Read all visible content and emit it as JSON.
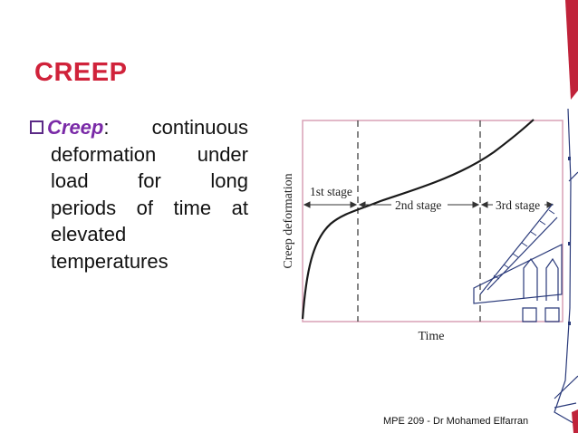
{
  "slide": {
    "title": "CREEP",
    "bullet": {
      "term": "Creep",
      "lines": [
        [
          ":",
          "continuous"
        ],
        [
          "deformation",
          "under"
        ],
        [
          "load",
          "for",
          "long"
        ],
        [
          "periods",
          "of",
          "time",
          "at"
        ],
        [
          "elevated"
        ],
        [
          "temperatures"
        ]
      ]
    },
    "footer": "MPE 209 - Dr Mohamed Elfarran"
  },
  "figure": {
    "ylabel": "Creep deformation",
    "xlabel": "Time",
    "stages": [
      "1st stage",
      "2nd stage",
      "3rd stage"
    ],
    "colors": {
      "frame": "#d9a0b5",
      "title": "#d0223a",
      "term": "#7a2aa7",
      "curve": "#1a1a1a"
    }
  }
}
